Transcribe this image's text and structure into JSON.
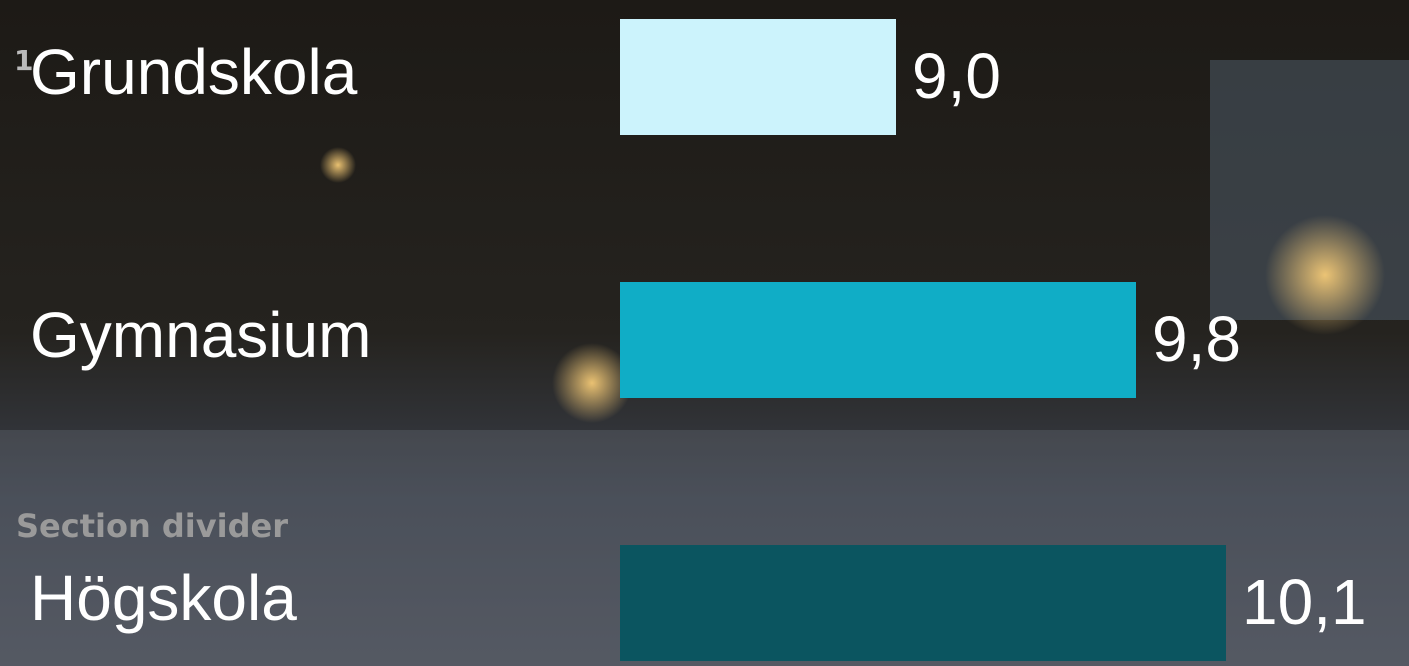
{
  "slide_number": "1",
  "section_label": "Section divider",
  "chart_data": {
    "type": "hbar",
    "categories": [
      "Grundskola",
      "Gymnasium",
      "Högskola"
    ],
    "values": [
      9.0,
      9.8,
      10.1
    ],
    "value_labels": [
      "9,0",
      "9,8",
      "10,1"
    ],
    "colors": [
      "#ccf3fc",
      "#10adc6",
      "#0b5560"
    ],
    "xlim": [
      8.08,
      10.2
    ]
  }
}
